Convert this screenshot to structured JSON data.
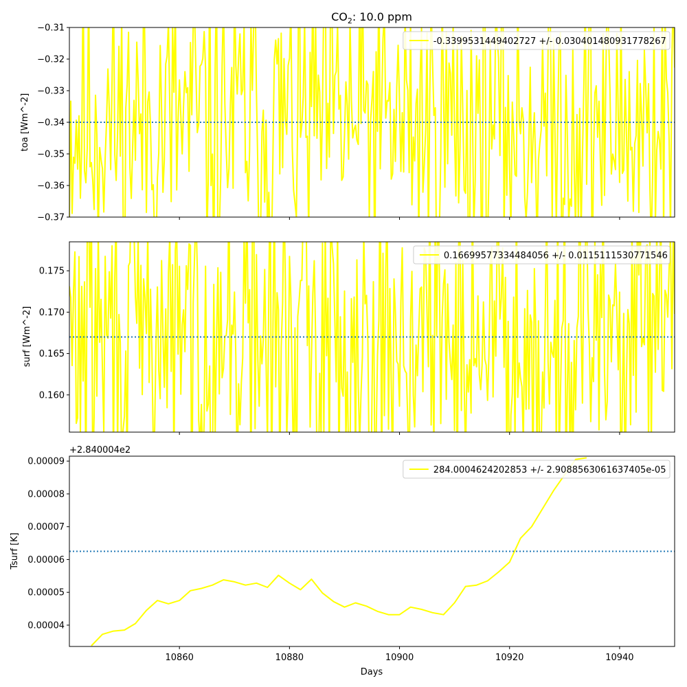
{
  "figure": {
    "title_main": "CO",
    "title_sub": "2",
    "title_rest": ": 10.0 ppm",
    "xlabel": "Days"
  },
  "colors": {
    "series": "#ffff00",
    "mean_line": "#1f77b4",
    "axes": "#000000"
  },
  "chart_data": [
    {
      "type": "line",
      "ylabel": "toa [Wm^-2]",
      "xlim": [
        10840,
        10950
      ],
      "ylim": [
        -0.37,
        -0.31
      ],
      "yticks": [
        -0.37,
        -0.36,
        -0.35,
        -0.34,
        -0.33,
        -0.32,
        -0.31
      ],
      "ytick_labels": [
        "−0.37",
        "−0.36",
        "−0.35",
        "−0.34",
        "−0.33",
        "−0.32",
        "−0.31"
      ],
      "xticks": [
        10860,
        10880,
        10900,
        10920,
        10940
      ],
      "mean": -0.3399531449402727,
      "std": 0.030401480931778267,
      "legend": "-0.3399531449402727 +/- 0.030401480931778267",
      "legend_loc": "upper right",
      "noisy": true,
      "x_start": 10840,
      "x_end": 10950,
      "x_step": 0.25,
      "seed": 11,
      "mean_line": -0.34
    },
    {
      "type": "line",
      "ylabel": "surf [Wm^-2]",
      "xlim": [
        10840,
        10950
      ],
      "ylim": [
        0.1555,
        0.1785
      ],
      "yticks": [
        0.16,
        0.165,
        0.17,
        0.175
      ],
      "ytick_labels": [
        "0.160",
        "0.165",
        "0.170",
        "0.175"
      ],
      "xticks": [
        10860,
        10880,
        10900,
        10920,
        10940
      ],
      "mean": 0.16699577334484056,
      "std": 0.0115111530771546,
      "legend": "0.16699577334484056 +/- 0.0115111530771546",
      "legend_loc": "upper right",
      "noisy": true,
      "x_start": 10840,
      "x_end": 10950,
      "x_step": 0.25,
      "seed": 29,
      "mean_line": 0.167
    },
    {
      "type": "line",
      "ylabel": "Tsurf [K]",
      "offset_label": "+2.840004e2",
      "xlim": [
        10840,
        10950
      ],
      "ylim": [
        3.35e-05,
        9.15e-05
      ],
      "yticks": [
        4e-05,
        5e-05,
        6e-05,
        7e-05,
        8e-05,
        9e-05
      ],
      "ytick_labels": [
        "0.00004",
        "0.00005",
        "0.00006",
        "0.00007",
        "0.00008",
        "0.00009"
      ],
      "xticks": [
        10860,
        10880,
        10900,
        10920,
        10940
      ],
      "xtick_labels": [
        "10860",
        "10880",
        "10900",
        "10920",
        "10940"
      ],
      "legend": "284.0004624202853 +/- 2.9088563061637405e-05",
      "legend_loc": "upper right",
      "noisy": false,
      "mean_line": 6.25e-05,
      "x": [
        10844,
        10846,
        10848,
        10850,
        10852,
        10854,
        10856,
        10858,
        10860,
        10862,
        10864,
        10866,
        10868,
        10870,
        10872,
        10874,
        10876,
        10878,
        10880,
        10882,
        10884,
        10886,
        10888,
        10890,
        10892,
        10894,
        10896,
        10898,
        10900,
        10902,
        10904,
        10906,
        10908,
        10910,
        10912,
        10914,
        10916,
        10918,
        10920,
        10922,
        10924,
        10926,
        10928,
        10930,
        10932,
        10934
      ],
      "y": [
        3.37e-05,
        3.72e-05,
        3.82e-05,
        3.85e-05,
        4.05e-05,
        4.45e-05,
        4.75e-05,
        4.65e-05,
        4.75e-05,
        5.05e-05,
        5.12e-05,
        5.22e-05,
        5.38e-05,
        5.32e-05,
        5.22e-05,
        5.28e-05,
        5.15e-05,
        5.52e-05,
        5.28e-05,
        5.08e-05,
        5.4e-05,
        4.98e-05,
        4.72e-05,
        4.55e-05,
        4.68e-05,
        4.58e-05,
        4.42e-05,
        4.32e-05,
        4.32e-05,
        4.55e-05,
        4.48e-05,
        4.38e-05,
        4.32e-05,
        4.68e-05,
        5.18e-05,
        5.22e-05,
        5.35e-05,
        5.62e-05,
        5.92e-05,
        6.65e-05,
        7e-05,
        7.55e-05,
        8.1e-05,
        8.58e-05,
        9.05e-05,
        9.1e-05
      ]
    }
  ]
}
